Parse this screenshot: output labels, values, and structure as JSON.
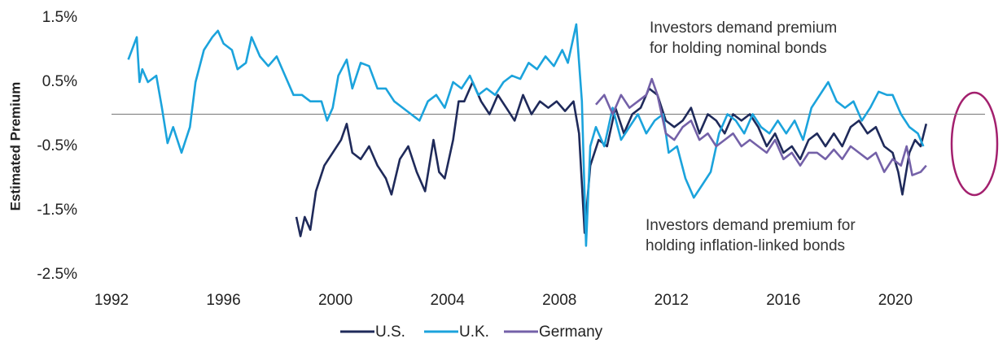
{
  "chart_data": {
    "type": "line",
    "y_axis_label": "Estimated Premium",
    "annotations": [
      [
        "Investors demand premium",
        "for holding nominal bonds"
      ],
      [
        "Investors demand premium for",
        "holding inflation-linked bonds"
      ]
    ],
    "xlim": [
      1992,
      2023.2
    ],
    "xticks": [
      1992,
      1996,
      2000,
      2004,
      2008,
      2012,
      2016,
      2020
    ],
    "ylim": [
      -2.5,
      1.5
    ],
    "yticks": [
      {
        "value": 1.5,
        "label": "1.5%"
      },
      {
        "value": 0.5,
        "label": "0.5%"
      },
      {
        "value": -0.5,
        "label": "-0.5%"
      },
      {
        "value": -1.5,
        "label": "-1.5%"
      },
      {
        "value": -2.5,
        "label": "-2.5%"
      }
    ],
    "legend": "bottom",
    "series": [
      {
        "name": "U.S.",
        "color": "#1f2a5a",
        "x": [
          1998.6,
          1998.75,
          1998.9,
          1999.1,
          1999.3,
          1999.6,
          1999.9,
          2000.2,
          2000.4,
          2000.6,
          2000.9,
          2001.2,
          2001.5,
          2001.8,
          2002.0,
          2002.3,
          2002.6,
          2002.9,
          2003.2,
          2003.5,
          2003.7,
          2003.9,
          2004.2,
          2004.4,
          2004.6,
          2004.9,
          2005.2,
          2005.5,
          2005.8,
          2006.1,
          2006.4,
          2006.7,
          2007.0,
          2007.3,
          2007.6,
          2007.9,
          2008.2,
          2008.5,
          2008.7,
          2008.9,
          2009.1,
          2009.4,
          2009.7,
          2010.0,
          2010.3,
          2010.6,
          2010.9,
          2011.2,
          2011.5,
          2011.8,
          2012.1,
          2012.4,
          2012.7,
          2013.0,
          2013.3,
          2013.6,
          2013.9,
          2014.2,
          2014.5,
          2014.8,
          2015.1,
          2015.4,
          2015.7,
          2016.0,
          2016.3,
          2016.6,
          2016.9,
          2017.2,
          2017.5,
          2017.8,
          2018.1,
          2018.4,
          2018.7,
          2019.0,
          2019.3,
          2019.6,
          2019.9,
          2020.1,
          2020.25,
          2020.5,
          2020.7,
          2020.9,
          2021.1
        ],
        "values": [
          -1.6,
          -1.9,
          -1.6,
          -1.8,
          -1.2,
          -0.8,
          -0.6,
          -0.4,
          -0.15,
          -0.6,
          -0.7,
          -0.5,
          -0.8,
          -1.0,
          -1.25,
          -0.7,
          -0.5,
          -0.9,
          -1.2,
          -0.4,
          -0.9,
          -1.0,
          -0.4,
          0.2,
          0.2,
          0.5,
          0.2,
          0.0,
          0.3,
          0.1,
          -0.1,
          0.3,
          0.0,
          0.2,
          0.1,
          0.2,
          0.05,
          0.2,
          -0.3,
          -1.85,
          -0.8,
          -0.4,
          -0.5,
          0.1,
          -0.3,
          0.0,
          0.1,
          0.4,
          0.3,
          -0.1,
          -0.2,
          -0.1,
          0.1,
          -0.3,
          0.0,
          -0.1,
          -0.3,
          0.0,
          -0.1,
          0.0,
          -0.2,
          -0.5,
          -0.3,
          -0.6,
          -0.5,
          -0.7,
          -0.4,
          -0.3,
          -0.5,
          -0.3,
          -0.5,
          -0.2,
          -0.1,
          -0.3,
          -0.2,
          -0.5,
          -0.6,
          -0.9,
          -1.25,
          -0.6,
          -0.4,
          -0.5,
          -0.15
        ]
      },
      {
        "name": "U.K.",
        "color": "#1ba3dc",
        "x": [
          1992.6,
          1992.9,
          1993.0,
          1993.1,
          1993.3,
          1993.6,
          1993.8,
          1994.0,
          1994.2,
          1994.5,
          1994.8,
          1995.0,
          1995.3,
          1995.6,
          1995.8,
          1996.0,
          1996.3,
          1996.5,
          1996.8,
          1997.0,
          1997.3,
          1997.6,
          1997.9,
          1998.2,
          1998.5,
          1998.8,
          1999.1,
          1999.5,
          1999.7,
          1999.9,
          2000.1,
          2000.4,
          2000.6,
          2000.9,
          2001.2,
          2001.5,
          2001.8,
          2002.1,
          2002.4,
          2002.7,
          2003.0,
          2003.3,
          2003.6,
          2003.9,
          2004.2,
          2004.5,
          2004.8,
          2005.1,
          2005.4,
          2005.7,
          2006.0,
          2006.3,
          2006.6,
          2006.9,
          2007.2,
          2007.5,
          2007.8,
          2008.1,
          2008.3,
          2008.6,
          2008.8,
          2008.95,
          2009.1,
          2009.3,
          2009.6,
          2009.9,
          2010.2,
          2010.5,
          2010.8,
          2011.1,
          2011.4,
          2011.7,
          2011.9,
          2012.2,
          2012.5,
          2012.8,
          2013.1,
          2013.4,
          2013.7,
          2014.0,
          2014.3,
          2014.6,
          2014.9,
          2015.2,
          2015.5,
          2015.8,
          2016.1,
          2016.4,
          2016.7,
          2017.0,
          2017.3,
          2017.6,
          2017.9,
          2018.2,
          2018.5,
          2018.8,
          2019.1,
          2019.4,
          2019.7,
          2019.9,
          2020.2,
          2020.5,
          2020.8,
          2021.0
        ],
        "values": [
          0.85,
          1.2,
          0.5,
          0.7,
          0.5,
          0.6,
          0.1,
          -0.45,
          -0.2,
          -0.6,
          -0.2,
          0.5,
          1.0,
          1.2,
          1.3,
          1.1,
          1.0,
          0.7,
          0.8,
          1.2,
          0.9,
          0.75,
          0.9,
          0.6,
          0.3,
          0.3,
          0.2,
          0.2,
          -0.1,
          0.1,
          0.6,
          0.85,
          0.4,
          0.8,
          0.75,
          0.4,
          0.4,
          0.2,
          0.1,
          0.0,
          -0.1,
          0.2,
          0.3,
          0.1,
          0.5,
          0.4,
          0.6,
          0.3,
          0.4,
          0.3,
          0.5,
          0.6,
          0.55,
          0.8,
          0.7,
          0.9,
          0.75,
          1.0,
          0.8,
          1.4,
          0.2,
          -2.05,
          -0.5,
          -0.2,
          -0.5,
          0.1,
          -0.4,
          -0.2,
          0.0,
          -0.3,
          -0.1,
          0.0,
          -0.6,
          -0.5,
          -1.0,
          -1.3,
          -1.1,
          -0.9,
          -0.3,
          0.0,
          -0.1,
          -0.3,
          0.0,
          -0.2,
          -0.3,
          -0.1,
          -0.3,
          -0.1,
          -0.4,
          0.1,
          0.3,
          0.5,
          0.2,
          0.1,
          0.2,
          -0.1,
          0.1,
          0.35,
          0.3,
          0.3,
          0.0,
          -0.2,
          -0.3,
          -0.5
        ]
      },
      {
        "name": "Germany",
        "color": "#7461a8",
        "x": [
          2009.3,
          2009.6,
          2009.9,
          2010.2,
          2010.5,
          2010.8,
          2011.1,
          2011.3,
          2011.5,
          2011.8,
          2012.1,
          2012.4,
          2012.7,
          2013.0,
          2013.3,
          2013.6,
          2013.9,
          2014.2,
          2014.5,
          2014.8,
          2015.1,
          2015.4,
          2015.7,
          2016.0,
          2016.3,
          2016.6,
          2016.9,
          2017.2,
          2017.5,
          2017.8,
          2018.1,
          2018.4,
          2018.7,
          2019.0,
          2019.3,
          2019.6,
          2019.9,
          2020.2,
          2020.4,
          2020.6,
          2020.9,
          2021.1
        ],
        "values": [
          0.15,
          0.3,
          0.0,
          0.3,
          0.1,
          0.2,
          0.3,
          0.55,
          0.3,
          -0.3,
          -0.4,
          -0.2,
          -0.1,
          -0.4,
          -0.3,
          -0.5,
          -0.4,
          -0.3,
          -0.5,
          -0.4,
          -0.5,
          -0.6,
          -0.4,
          -0.7,
          -0.6,
          -0.8,
          -0.6,
          -0.6,
          -0.7,
          -0.55,
          -0.7,
          -0.5,
          -0.6,
          -0.7,
          -0.6,
          -0.9,
          -0.7,
          -0.8,
          -0.5,
          -0.95,
          -0.9,
          -0.8
        ]
      }
    ]
  }
}
